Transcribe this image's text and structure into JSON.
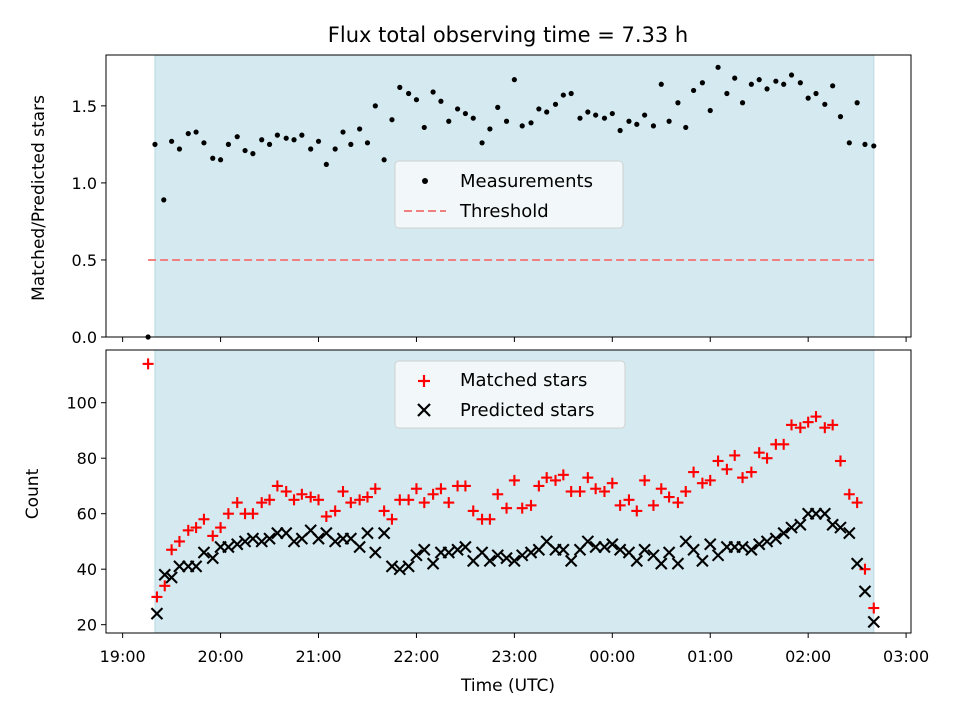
{
  "chart_data": [
    {
      "type": "scatter",
      "title": "Flux total observing time = 7.33 h",
      "xlabel": "",
      "ylabel": "Matched/Predicted stars",
      "ylim": [
        0,
        1.83
      ],
      "yticks": [
        0.0,
        0.5,
        1.0,
        1.5
      ],
      "ytick_labels": [
        "0.0",
        "0.5",
        "1.0",
        "1.5"
      ],
      "shade_range_hours": [
        19.33,
        26.67
      ],
      "shade_color": "#d4eaf0",
      "legend_position": "center",
      "series": [
        {
          "name": "Measurements",
          "color": "#000000",
          "marker": "dot",
          "x": [
            19.26,
            19.33,
            19.42,
            19.5,
            19.58,
            19.67,
            19.75,
            19.83,
            19.92,
            20.0,
            20.08,
            20.17,
            20.25,
            20.33,
            20.42,
            20.5,
            20.58,
            20.67,
            20.75,
            20.83,
            20.92,
            21.0,
            21.08,
            21.17,
            21.25,
            21.33,
            21.42,
            21.5,
            21.58,
            21.67,
            21.75,
            21.83,
            21.92,
            22.0,
            22.08,
            22.17,
            22.25,
            22.33,
            22.42,
            22.5,
            22.58,
            22.67,
            22.75,
            22.83,
            22.92,
            23.0,
            23.08,
            23.17,
            23.25,
            23.33,
            23.42,
            23.5,
            23.58,
            23.67,
            23.75,
            23.83,
            23.92,
            24.0,
            24.08,
            24.17,
            24.25,
            24.33,
            24.42,
            24.5,
            24.58,
            24.67,
            24.75,
            24.83,
            24.92,
            25.0,
            25.08,
            25.17,
            25.25,
            25.33,
            25.42,
            25.5,
            25.58,
            25.67,
            25.75,
            25.83,
            25.92,
            26.0,
            26.08,
            26.17,
            26.25,
            26.33,
            26.42,
            26.5,
            26.58,
            26.67
          ],
          "y": [
            0.0,
            1.25,
            0.89,
            1.27,
            1.22,
            1.32,
            1.33,
            1.26,
            1.16,
            1.15,
            1.25,
            1.3,
            1.21,
            1.19,
            1.28,
            1.25,
            1.31,
            1.29,
            1.28,
            1.31,
            1.22,
            1.27,
            1.12,
            1.22,
            1.33,
            1.25,
            1.35,
            1.26,
            1.5,
            1.15,
            1.41,
            1.62,
            1.58,
            1.54,
            1.36,
            1.59,
            1.53,
            1.4,
            1.48,
            1.45,
            1.42,
            1.26,
            1.35,
            1.49,
            1.4,
            1.67,
            1.37,
            1.39,
            1.48,
            1.46,
            1.51,
            1.57,
            1.58,
            1.42,
            1.46,
            1.44,
            1.42,
            1.45,
            1.34,
            1.4,
            1.38,
            1.44,
            1.37,
            1.64,
            1.4,
            1.52,
            1.36,
            1.6,
            1.65,
            1.47,
            1.75,
            1.58,
            1.68,
            1.52,
            1.64,
            1.67,
            1.61,
            1.66,
            1.64,
            1.7,
            1.65,
            1.55,
            1.58,
            1.51,
            1.63,
            1.43,
            1.26,
            1.52,
            1.25,
            1.24
          ]
        },
        {
          "name": "Threshold",
          "color": "#f08080",
          "style": "dashed",
          "x": [
            19.26,
            26.67
          ],
          "y": [
            0.5,
            0.5
          ]
        }
      ]
    },
    {
      "type": "scatter",
      "xlabel": "Time (UTC)",
      "ylabel": "Count",
      "ylim": [
        17,
        119
      ],
      "yticks": [
        20,
        40,
        60,
        80,
        100
      ],
      "ytick_labels": [
        "20",
        "40",
        "60",
        "80",
        "100"
      ],
      "xlim_hours": [
        18.83,
        27.05
      ],
      "xticks_hours": [
        19,
        20,
        21,
        22,
        23,
        24,
        25,
        26,
        27
      ],
      "xtick_labels": [
        "19:00",
        "20:00",
        "21:00",
        "22:00",
        "23:00",
        "00:00",
        "01:00",
        "02:00",
        "03:00"
      ],
      "shade_range_hours": [
        19.33,
        26.67
      ],
      "shade_color": "#d4eaf0",
      "legend_position": "upper center",
      "series": [
        {
          "name": "Matched stars",
          "color": "#ff0000",
          "marker": "plus",
          "x": [
            19.26,
            19.35,
            19.43,
            19.5,
            19.58,
            19.67,
            19.75,
            19.83,
            19.92,
            20.0,
            20.08,
            20.17,
            20.25,
            20.33,
            20.42,
            20.5,
            20.58,
            20.67,
            20.75,
            20.83,
            20.92,
            21.0,
            21.08,
            21.17,
            21.25,
            21.33,
            21.42,
            21.5,
            21.58,
            21.67,
            21.75,
            21.83,
            21.92,
            22.0,
            22.08,
            22.17,
            22.25,
            22.33,
            22.42,
            22.5,
            22.58,
            22.67,
            22.75,
            22.83,
            22.92,
            23.0,
            23.08,
            23.17,
            23.25,
            23.33,
            23.42,
            23.5,
            23.58,
            23.67,
            23.75,
            23.83,
            23.92,
            24.0,
            24.08,
            24.17,
            24.25,
            24.33,
            24.42,
            24.5,
            24.58,
            24.67,
            24.75,
            24.83,
            24.92,
            25.0,
            25.08,
            25.17,
            25.25,
            25.33,
            25.42,
            25.5,
            25.58,
            25.67,
            25.75,
            25.83,
            25.92,
            26.0,
            26.08,
            26.17,
            26.25,
            26.33,
            26.42,
            26.5,
            26.58,
            26.67
          ],
          "y": [
            114,
            30,
            34,
            47,
            50,
            54,
            55,
            58,
            52,
            55,
            60,
            64,
            60,
            60,
            64,
            65,
            70,
            68,
            65,
            67,
            66,
            65,
            59,
            61,
            68,
            64,
            65,
            66,
            69,
            61,
            58,
            65,
            65,
            69,
            64,
            67,
            69,
            64,
            70,
            70,
            61,
            58,
            58,
            67,
            62,
            72,
            62,
            63,
            70,
            73,
            72,
            74,
            68,
            68,
            73,
            69,
            68,
            71,
            63,
            65,
            61,
            72,
            63,
            69,
            66,
            64,
            68,
            75,
            71,
            72,
            79,
            76,
            81,
            73,
            75,
            82,
            80,
            85,
            85,
            92,
            91,
            93,
            95,
            91,
            92,
            79,
            67,
            64,
            40,
            26
          ]
        },
        {
          "name": "Predicted stars",
          "color": "#000000",
          "marker": "x",
          "x": [
            19.35,
            19.43,
            19.5,
            19.58,
            19.67,
            19.75,
            19.83,
            19.92,
            20.0,
            20.08,
            20.17,
            20.25,
            20.33,
            20.42,
            20.5,
            20.58,
            20.67,
            20.75,
            20.83,
            20.92,
            21.0,
            21.08,
            21.17,
            21.25,
            21.33,
            21.42,
            21.5,
            21.58,
            21.67,
            21.75,
            21.83,
            21.92,
            22.0,
            22.08,
            22.17,
            22.25,
            22.33,
            22.42,
            22.5,
            22.58,
            22.67,
            22.75,
            22.83,
            22.92,
            23.0,
            23.08,
            23.17,
            23.25,
            23.33,
            23.42,
            23.5,
            23.58,
            23.67,
            23.75,
            23.83,
            23.92,
            24.0,
            24.08,
            24.17,
            24.25,
            24.33,
            24.42,
            24.5,
            24.58,
            24.67,
            24.75,
            24.83,
            24.92,
            25.0,
            25.08,
            25.17,
            25.25,
            25.33,
            25.42,
            25.5,
            25.58,
            25.67,
            25.75,
            25.83,
            25.92,
            26.0,
            26.08,
            26.17,
            26.25,
            26.33,
            26.42,
            26.5,
            26.58,
            26.67
          ],
          "y": [
            24,
            38,
            37,
            41,
            41,
            41,
            46,
            44,
            48,
            48,
            49,
            50,
            51,
            50,
            51,
            53,
            53,
            50,
            51,
            54,
            51,
            53,
            50,
            51,
            51,
            48,
            53,
            46,
            53,
            41,
            40,
            41,
            45,
            47,
            42,
            46,
            46,
            47,
            48,
            43,
            46,
            43,
            45,
            44,
            43,
            45,
            46,
            47,
            50,
            47,
            47,
            43,
            47,
            50,
            48,
            48,
            49,
            47,
            46,
            43,
            47,
            45,
            42,
            46,
            42,
            50,
            47,
            43,
            49,
            45,
            48,
            48,
            48,
            47,
            49,
            50,
            51,
            53,
            55,
            56,
            60,
            60,
            60,
            56,
            55,
            53,
            42,
            32,
            21
          ]
        }
      ]
    }
  ]
}
